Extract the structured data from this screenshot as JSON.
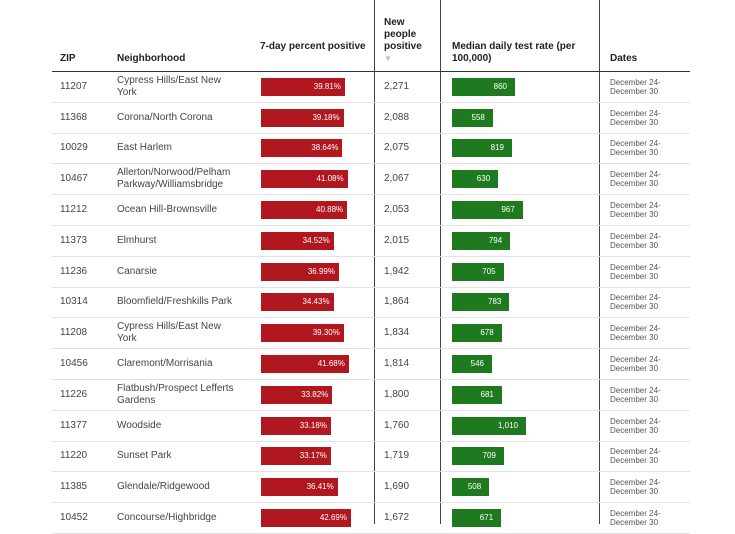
{
  "headers": {
    "zip": "ZIP",
    "neighborhood": "Neighborhood",
    "pct_positive": "7-day percent positive",
    "new_positive": "New people positive",
    "sort_indicator": "▼",
    "test_rate": "Median daily test rate (per 100,000)",
    "dates": "Dates"
  },
  "colors": {
    "positive_bar": "#b0171f",
    "test_bar": "#1f7a1f"
  },
  "chart_data": {
    "type": "table",
    "columns": [
      "ZIP",
      "Neighborhood",
      "7-day percent positive",
      "New people positive",
      "Median daily test rate (per 100,000)",
      "Dates"
    ],
    "rows": [
      {
        "zip": "11207",
        "neighborhood": "Cypress Hills/East New York",
        "pct": 39.81,
        "pct_label": "39.81%",
        "new_positive": "2,271",
        "test_rate": 860,
        "rate_label": "860",
        "dates": "December 24- December 30"
      },
      {
        "zip": "11368",
        "neighborhood": "Corona/North Corona",
        "pct": 39.18,
        "pct_label": "39.18%",
        "new_positive": "2,088",
        "test_rate": 558,
        "rate_label": "558",
        "dates": "December 24- December 30"
      },
      {
        "zip": "10029",
        "neighborhood": "East Harlem",
        "pct": 38.64,
        "pct_label": "38.64%",
        "new_positive": "2,075",
        "test_rate": 819,
        "rate_label": "819",
        "dates": "December 24- December 30"
      },
      {
        "zip": "10467",
        "neighborhood": "Allerton/Norwood/Pelham Parkway/Williamsbridge",
        "pct": 41.08,
        "pct_label": "41.08%",
        "new_positive": "2,067",
        "test_rate": 630,
        "rate_label": "630",
        "dates": "December 24- December 30"
      },
      {
        "zip": "11212",
        "neighborhood": "Ocean Hill-Brownsville",
        "pct": 40.88,
        "pct_label": "40.88%",
        "new_positive": "2,053",
        "test_rate": 967,
        "rate_label": "967",
        "dates": "December 24- December 30"
      },
      {
        "zip": "11373",
        "neighborhood": "Elmhurst",
        "pct": 34.52,
        "pct_label": "34.52%",
        "new_positive": "2,015",
        "test_rate": 794,
        "rate_label": "794",
        "dates": "December 24- December 30"
      },
      {
        "zip": "11236",
        "neighborhood": "Canarsie",
        "pct": 36.99,
        "pct_label": "36.99%",
        "new_positive": "1,942",
        "test_rate": 705,
        "rate_label": "705",
        "dates": "December 24- December 30"
      },
      {
        "zip": "10314",
        "neighborhood": "Bloomfield/Freshkills Park",
        "pct": 34.43,
        "pct_label": "34.43%",
        "new_positive": "1,864",
        "test_rate": 783,
        "rate_label": "783",
        "dates": "December 24- December 30"
      },
      {
        "zip": "11208",
        "neighborhood": "Cypress Hills/East New York",
        "pct": 39.3,
        "pct_label": "39.30%",
        "new_positive": "1,834",
        "test_rate": 678,
        "rate_label": "678",
        "dates": "December 24- December 30"
      },
      {
        "zip": "10456",
        "neighborhood": "Claremont/Morrisania",
        "pct": 41.68,
        "pct_label": "41.68%",
        "new_positive": "1,814",
        "test_rate": 546,
        "rate_label": "546",
        "dates": "December 24- December 30"
      },
      {
        "zip": "11226",
        "neighborhood": "Flatbush/Prospect Lefferts Gardens",
        "pct": 33.82,
        "pct_label": "33.82%",
        "new_positive": "1,800",
        "test_rate": 681,
        "rate_label": "681",
        "dates": "December 24- December 30"
      },
      {
        "zip": "11377",
        "neighborhood": "Woodside",
        "pct": 33.18,
        "pct_label": "33.18%",
        "new_positive": "1,760",
        "test_rate": 1010,
        "rate_label": "1,010",
        "dates": "December 24- December 30"
      },
      {
        "zip": "11220",
        "neighborhood": "Sunset Park",
        "pct": 33.17,
        "pct_label": "33.17%",
        "new_positive": "1,719",
        "test_rate": 709,
        "rate_label": "709",
        "dates": "December 24- December 30"
      },
      {
        "zip": "11385",
        "neighborhood": "Glendale/Ridgewood",
        "pct": 36.41,
        "pct_label": "36.41%",
        "new_positive": "1,690",
        "test_rate": 508,
        "rate_label": "508",
        "dates": "December 24- December 30"
      },
      {
        "zip": "10452",
        "neighborhood": "Concourse/Highbridge",
        "pct": 42.69,
        "pct_label": "42.69%",
        "new_positive": "1,672",
        "test_rate": 671,
        "rate_label": "671",
        "dates": "December 24- December 30"
      }
    ]
  }
}
